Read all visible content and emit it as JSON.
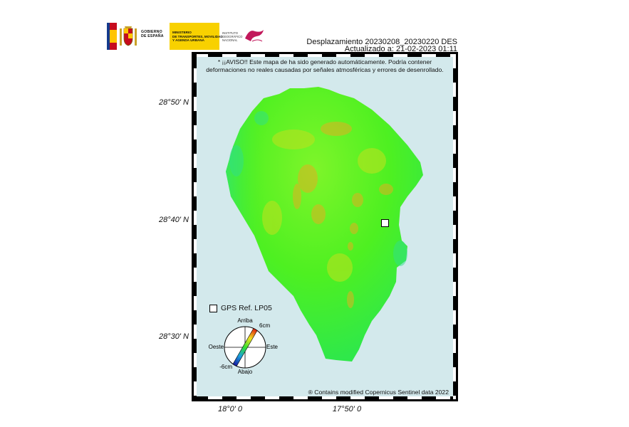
{
  "logos": {
    "gobierno": [
      "GOBIERNO",
      "DE ESPAÑA"
    ],
    "ministerio": [
      "MINISTERIO",
      "DE TRANSPORTES, MOVILIDAD",
      "Y AGENDA URBANA"
    ],
    "ign": [
      "INSTITUTO",
      "GEOGRÁFICO",
      "NACIONAL"
    ],
    "colors": {
      "flag_red": "#c60b1e",
      "flag_yellow": "#ffc400",
      "ministry_yellow": "#f8d100",
      "ign_magenta": "#c2185b"
    },
    "icons": [
      "spain-coat-of-arms-icon",
      "ign-logo-icon"
    ]
  },
  "header": {
    "title": "Desplazamiento 20230208_20230220 DES",
    "updated": "Actualizado a: 21-02-2023 01:11"
  },
  "warning": {
    "line1": "* ¡¡AVISO!! Este mapa de ha sido generado automáticamente. Podría contener",
    "line2": "deformaciones no reales causadas por señales atmosféricas y errores de desenrollado."
  },
  "axes": {
    "lat_labels": [
      "28°50' N",
      "28°40' N",
      "28°30' N"
    ],
    "lon_labels": [
      "18°0' 0",
      "17°50' 0"
    ]
  },
  "legend": {
    "gps_label": "GPS Ref. LP05",
    "compass": {
      "up": "Arriba",
      "down": "Abajo",
      "west": "Oeste",
      "east": "Este",
      "max": "6cm",
      "min": "-6cm"
    }
  },
  "attribution": "® Contains modified Copernicus Sentinel data 2022",
  "colors": {
    "sea": "#d3e9ec",
    "island_base": "#4ef021",
    "deformation_positive": "#e0b020",
    "frame": "#000000"
  }
}
